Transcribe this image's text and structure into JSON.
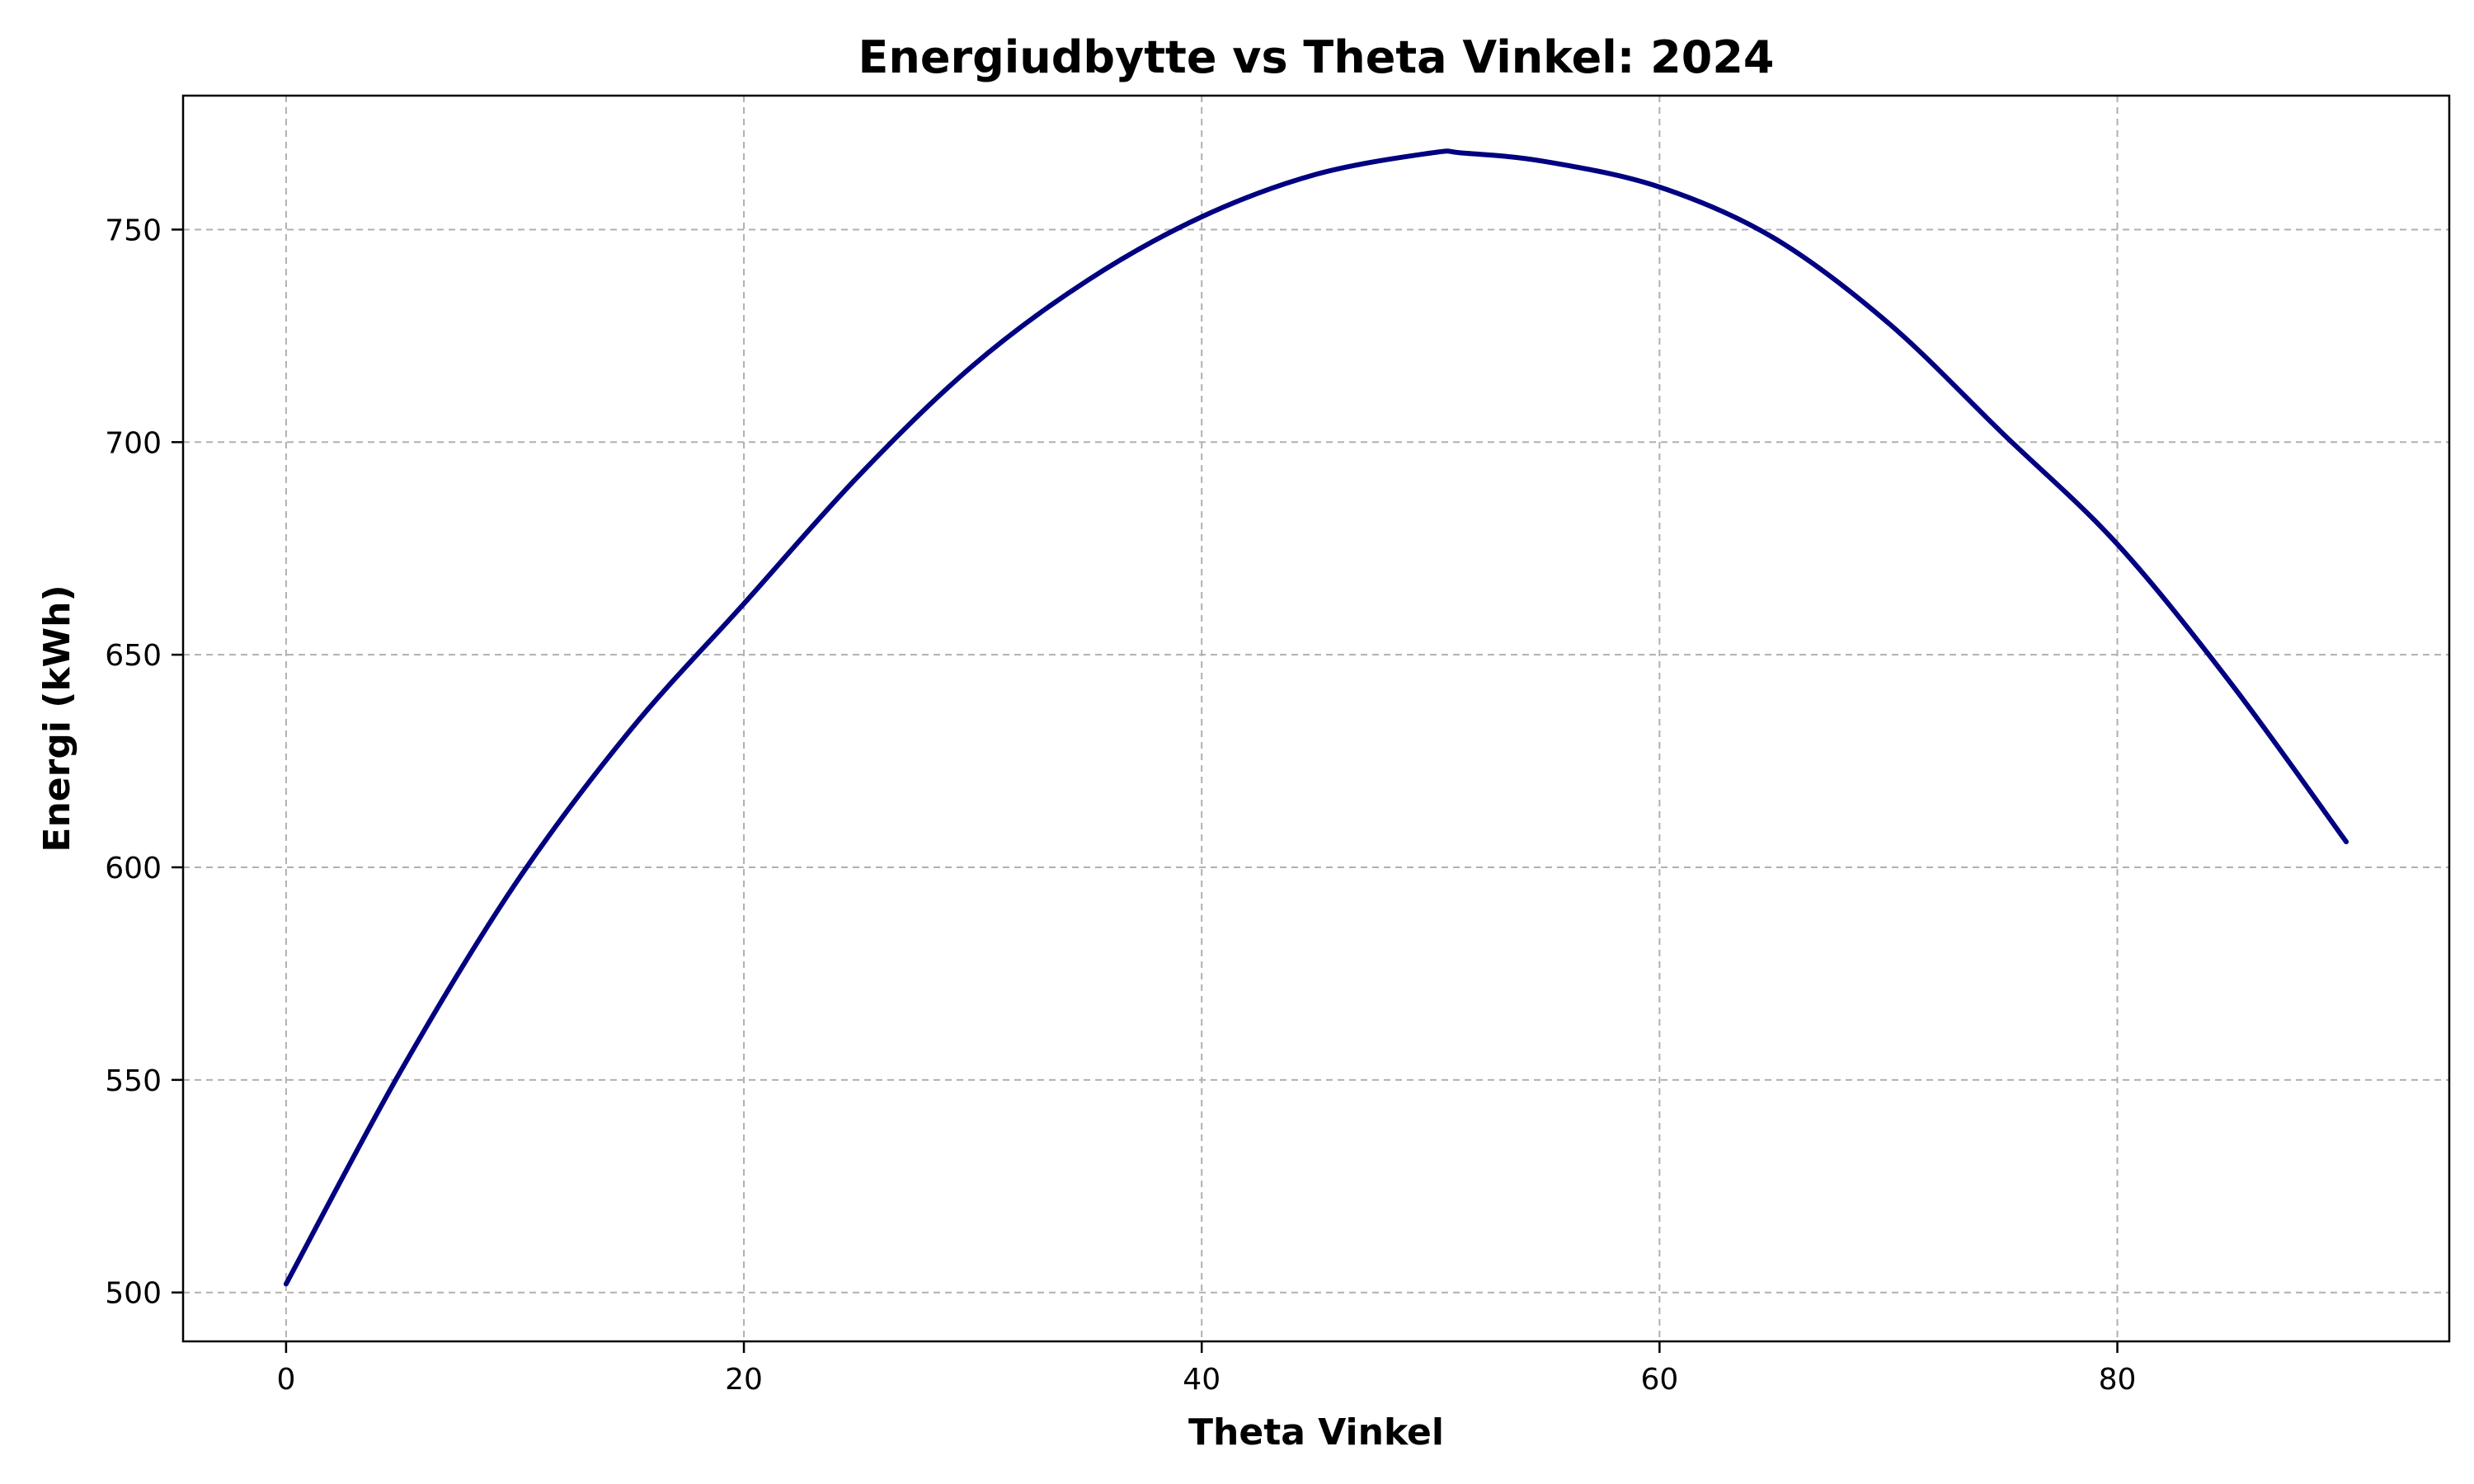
{
  "chart_data": {
    "type": "line",
    "title": "Energiudbytte vs Theta Vinkel: 2024",
    "xlabel": "Theta Vinkel",
    "ylabel": "Energi (kWh)",
    "xlim": [
      -4.5,
      94.5
    ],
    "ylim": [
      488.5,
      781.5
    ],
    "xticks": [
      0,
      20,
      40,
      60,
      80
    ],
    "yticks": [
      500,
      550,
      600,
      650,
      700,
      750
    ],
    "grid": true,
    "series": [
      {
        "color": "#000080",
        "x": [
          0,
          5,
          10,
          15,
          20,
          25,
          30,
          35,
          40,
          45,
          50,
          51.4,
          55,
          60,
          65,
          70,
          75,
          80,
          85,
          90
        ],
        "y": [
          502,
          552,
          596,
          632,
          662,
          692,
          718,
          738,
          753,
          763,
          768,
          768,
          766,
          760,
          748,
          728,
          702,
          676,
          643,
          606
        ]
      }
    ]
  }
}
